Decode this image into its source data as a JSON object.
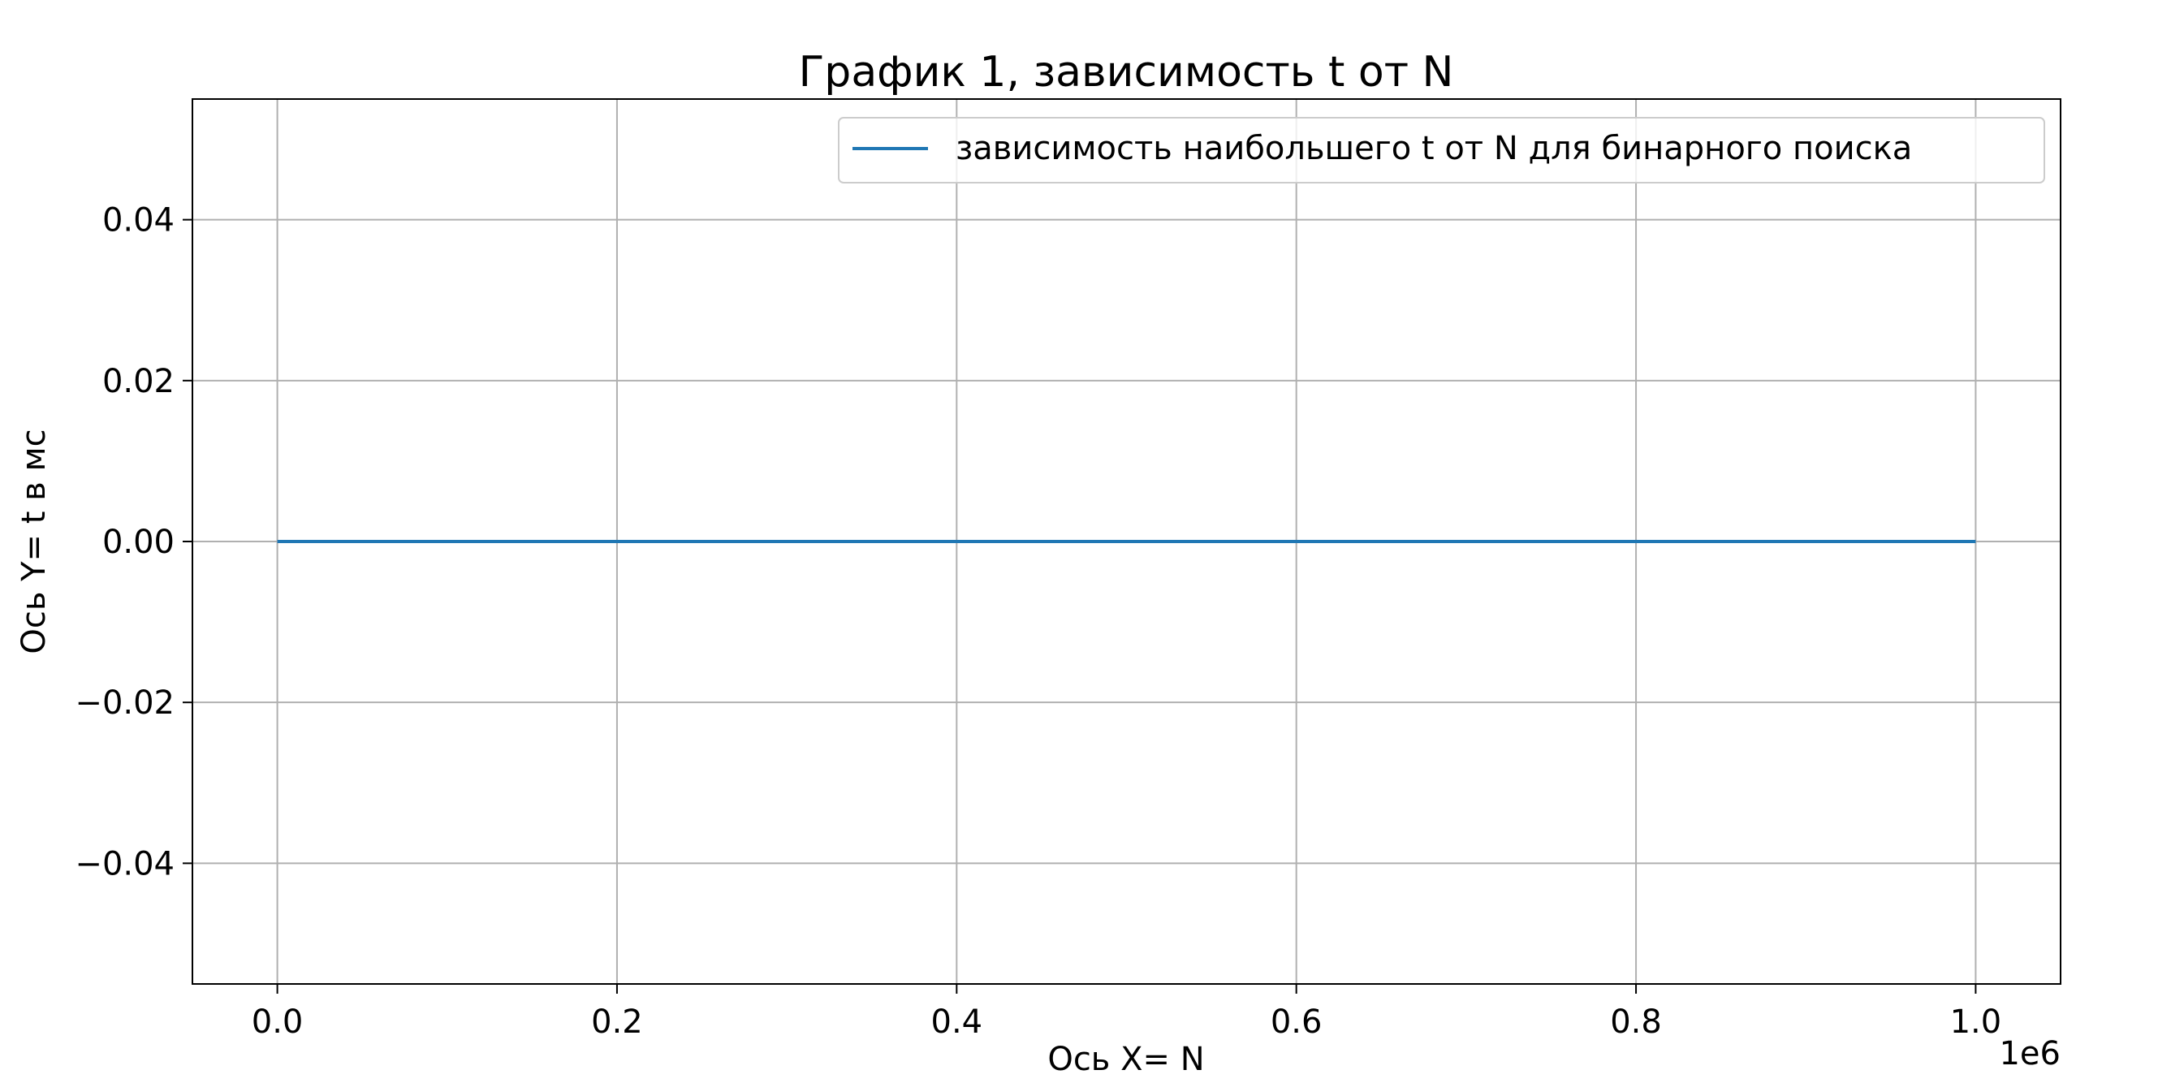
{
  "chart_data": {
    "type": "line",
    "title": "График 1, зависимость t от N",
    "xlabel": "Ось X= N",
    "ylabel": "Ось Y=   t в мс",
    "x_offset_label": "1e6",
    "x_ticks": [
      "0.0",
      "0.2",
      "0.4",
      "0.6",
      "0.8",
      "1.0"
    ],
    "x_tick_values": [
      0,
      200000,
      400000,
      600000,
      800000,
      1000000
    ],
    "y_ticks": [
      "0.04",
      "0.02",
      "0.00",
      "−0.02",
      "−0.04"
    ],
    "y_tick_values": [
      0.04,
      0.02,
      0.0,
      -0.02,
      -0.04
    ],
    "xlim": [
      -50000,
      1050000
    ],
    "ylim": [
      -0.055,
      0.055
    ],
    "grid": true,
    "legend_position": "top-right",
    "series": [
      {
        "name": "зависимость наибольшего t от N для бинарного поиска",
        "color": "#1f77b4",
        "x": [
          0,
          1000000
        ],
        "y": [
          0,
          0
        ]
      }
    ]
  }
}
